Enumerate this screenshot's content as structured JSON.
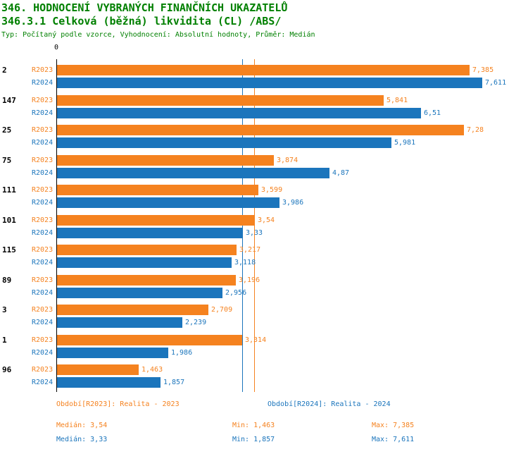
{
  "header": {
    "title1": "346. HODNOCENÍ VYBRANÝCH FINANČNÍCH UKAZATELŮ",
    "title2": "346.3.1 Celková (běžná) likvidita (CL) /ABS/",
    "meta": "Typ: Počítaný podle vzorce, Vyhodnocení: Absolutní hodnoty, Průměr: Medián"
  },
  "colors": {
    "title_green": "#008000",
    "r2023_orange": "#F5821F",
    "r2024_blue": "#1B75BC",
    "axis_black": "#000000"
  },
  "chart_data": {
    "type": "bar",
    "orientation": "horizontal",
    "title": "346.3.1 Celková (běžná) likvidita (CL) /ABS/",
    "axis": {
      "origin_label": "0",
      "min": 0,
      "max_value_shown": 7.611
    },
    "grid": "off",
    "series": [
      {
        "name": "R2023",
        "color": "#F5821F",
        "legend": "Období[R2023]: Realita - 2023",
        "median": 3.54,
        "min": 1.463,
        "max": 7.385
      },
      {
        "name": "R2024",
        "color": "#1B75BC",
        "legend": "Období[R2024]: Realita - 2024",
        "median": 3.33,
        "min": 1.857,
        "max": 7.611
      }
    ],
    "categories": [
      "2",
      "147",
      "25",
      "75",
      "111",
      "101",
      "115",
      "89",
      "3",
      "1",
      "96"
    ],
    "groups": [
      {
        "id": "2",
        "values": [
          7.385,
          7.611
        ],
        "labels": [
          "7,385",
          "7,611"
        ]
      },
      {
        "id": "147",
        "values": [
          5.841,
          6.51
        ],
        "labels": [
          "5,841",
          "6,51"
        ]
      },
      {
        "id": "25",
        "values": [
          7.28,
          5.981
        ],
        "labels": [
          "7,28",
          "5,981"
        ]
      },
      {
        "id": "75",
        "values": [
          3.874,
          4.87
        ],
        "labels": [
          "3,874",
          "4,87"
        ]
      },
      {
        "id": "111",
        "values": [
          3.599,
          3.986
        ],
        "labels": [
          "3,599",
          "3,986"
        ]
      },
      {
        "id": "101",
        "values": [
          3.54,
          3.33
        ],
        "labels": [
          "3,54",
          "3,33"
        ]
      },
      {
        "id": "115",
        "values": [
          3.217,
          3.118
        ],
        "labels": [
          "3,217",
          "3,118"
        ]
      },
      {
        "id": "89",
        "values": [
          3.196,
          2.956
        ],
        "labels": [
          "3,196",
          "2,956"
        ]
      },
      {
        "id": "3",
        "values": [
          2.709,
          2.239
        ],
        "labels": [
          "2,709",
          "2,239"
        ]
      },
      {
        "id": "1",
        "values": [
          3.314,
          1.986
        ],
        "labels": [
          "3,314",
          "1,986"
        ]
      },
      {
        "id": "96",
        "values": [
          1.463,
          1.857
        ],
        "labels": [
          "1,463",
          "1,857"
        ]
      }
    ]
  },
  "footer": {
    "legend_r2023": "Období[R2023]: Realita - 2023",
    "legend_r2024": "Období[R2024]: Realita - 2024",
    "median_r2023": "Medián: 3,54",
    "min_r2023": "Min: 1,463",
    "max_r2023": "Max: 7,385",
    "median_r2024": "Medián: 3,33",
    "min_r2024": "Min: 1,857",
    "max_r2024": "Max: 7,611"
  }
}
